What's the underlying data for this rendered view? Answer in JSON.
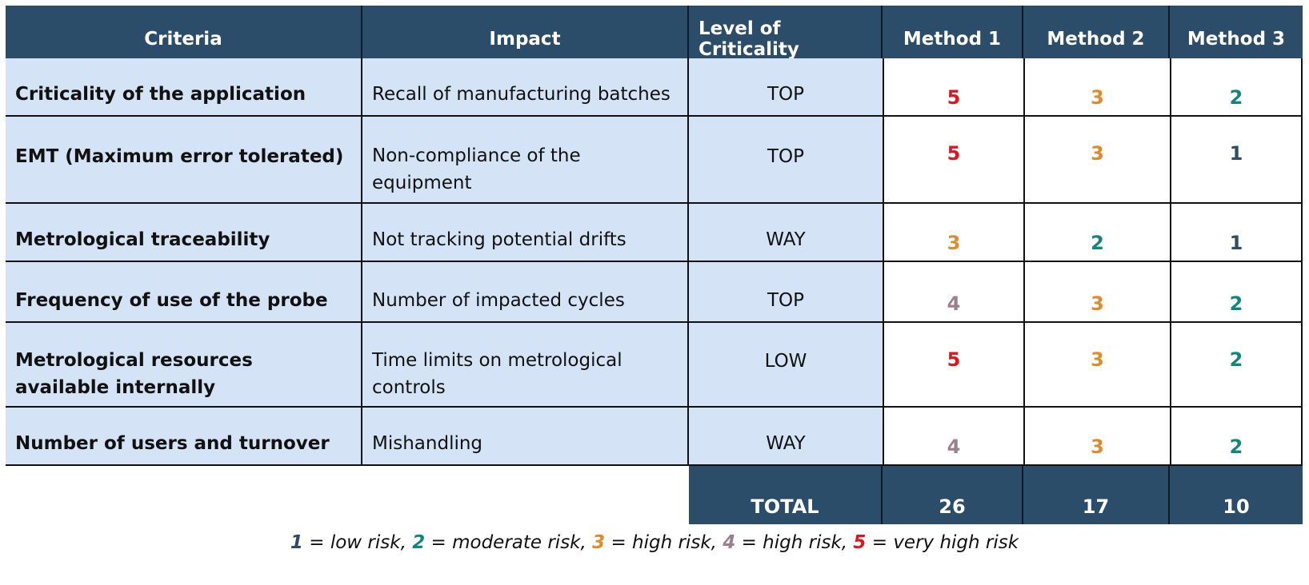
{
  "colors": {
    "header_bg": "#2b4d6a",
    "row_bg": "#d4e3f5",
    "risk_1": "#2b4d6a",
    "risk_2": "#14857e",
    "risk_3": "#e08a2c",
    "risk_4": "#9a7f8d",
    "risk_5": "#e0141e"
  },
  "table": {
    "headers": [
      "Criteria",
      "Impact",
      "Level of Criticality",
      "Method 1",
      "Method 2",
      "Method 3"
    ],
    "rows": [
      {
        "criteria": "Criticality of the application",
        "impact": "Recall of manufacturing batches",
        "level": "TOP",
        "scores": [
          "5",
          "3",
          "2"
        ],
        "colors": [
          "#e0141e",
          "#e08a2c",
          "#14857e"
        ]
      },
      {
        "criteria": "EMT (Maximum error tolerated)",
        "impact": "Non-compliance of the equipment",
        "level": "TOP",
        "scores": [
          "5",
          "3",
          "1"
        ],
        "colors": [
          "#e0141e",
          "#e08a2c",
          "#2b4d6a"
        ]
      },
      {
        "criteria": "Metrological traceability",
        "impact": "Not tracking potential drifts",
        "level": "WAY",
        "scores": [
          "3",
          "2",
          "1"
        ],
        "colors": [
          "#e08a2c",
          "#14857e",
          "#2b4d6a"
        ]
      },
      {
        "criteria": "Frequency of use of the probe",
        "impact": "Number of impacted cycles",
        "level": "TOP",
        "scores": [
          "4",
          "3",
          "2"
        ],
        "colors": [
          "#9a7f8d",
          "#e08a2c",
          "#14857e"
        ]
      },
      {
        "criteria": "Metrological resources available internally",
        "impact": "Time limits on metrological controls",
        "level": "LOW",
        "scores": [
          "5",
          "3",
          "2"
        ],
        "colors": [
          "#e0141e",
          "#e08a2c",
          "#14857e"
        ]
      },
      {
        "criteria": "Number of users and turnover",
        "impact": "Mishandling",
        "level": "WAY",
        "scores": [
          "4",
          "3",
          "2"
        ],
        "colors": [
          "#9a7f8d",
          "#e08a2c",
          "#14857e"
        ]
      }
    ],
    "total": {
      "label": "TOTAL",
      "values": [
        "26",
        "17",
        "10"
      ]
    }
  },
  "legend": [
    {
      "num": "1",
      "text": " = low risk, ",
      "color": "#2b4d6a"
    },
    {
      "num": "2",
      "text": " = moderate risk, ",
      "color": "#14857e"
    },
    {
      "num": "3",
      "text": " = high risk, ",
      "color": "#e08a2c"
    },
    {
      "num": "4",
      "text": " = high risk, ",
      "color": "#9a7f8d"
    },
    {
      "num": "5",
      "text": " = very high risk",
      "color": "#e0141e"
    }
  ]
}
